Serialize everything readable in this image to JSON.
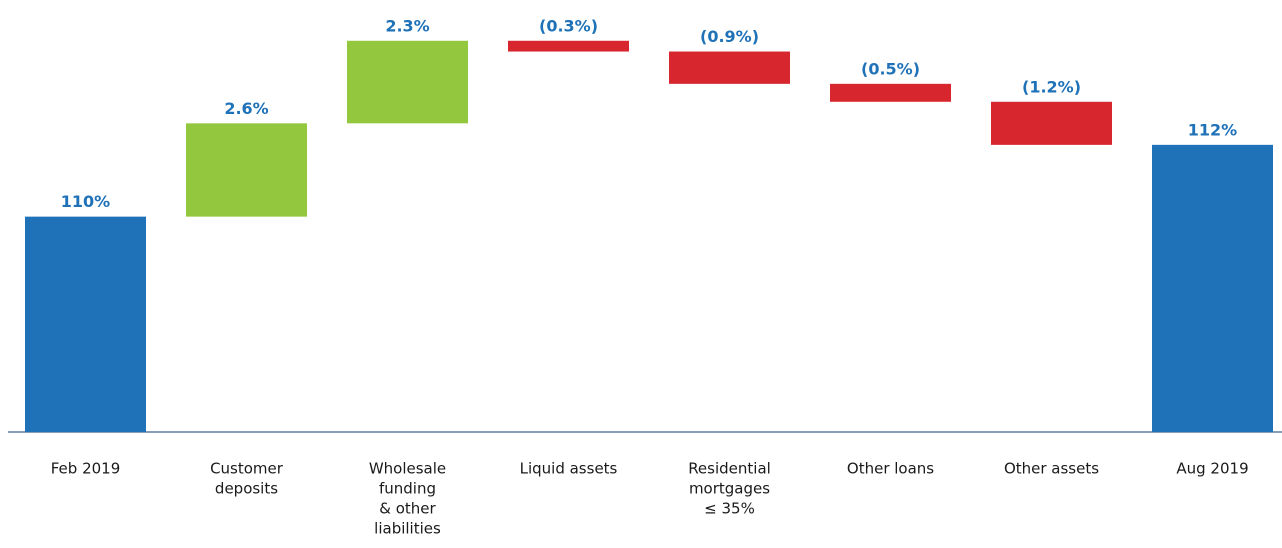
{
  "chart_data": {
    "type": "waterfall",
    "categories": [
      [
        "Feb 2019"
      ],
      [
        "Customer",
        "deposits"
      ],
      [
        "Wholesale",
        "funding",
        "& other",
        "liabilities"
      ],
      [
        "Liquid assets"
      ],
      [
        "Residential",
        "mortgages",
        "≤ 35%"
      ],
      [
        "Other loans"
      ],
      [
        "Other assets"
      ],
      [
        "Aug 2019"
      ]
    ],
    "values": [
      110,
      2.6,
      2.3,
      -0.3,
      -0.9,
      -0.5,
      -1.2,
      112
    ],
    "value_labels": [
      "110%",
      "2.6%",
      "2.3%",
      "(0.3%)",
      "(0.9%)",
      "(0.5%)",
      "(1.2%)",
      "112%"
    ],
    "measures": [
      "total",
      "relative",
      "relative",
      "relative",
      "relative",
      "relative",
      "relative",
      "total"
    ],
    "colors": {
      "total": "#1f72b8",
      "increase": "#93c83e",
      "decrease": "#d7262e"
    },
    "ylim": [
      104,
      115.2
    ]
  }
}
